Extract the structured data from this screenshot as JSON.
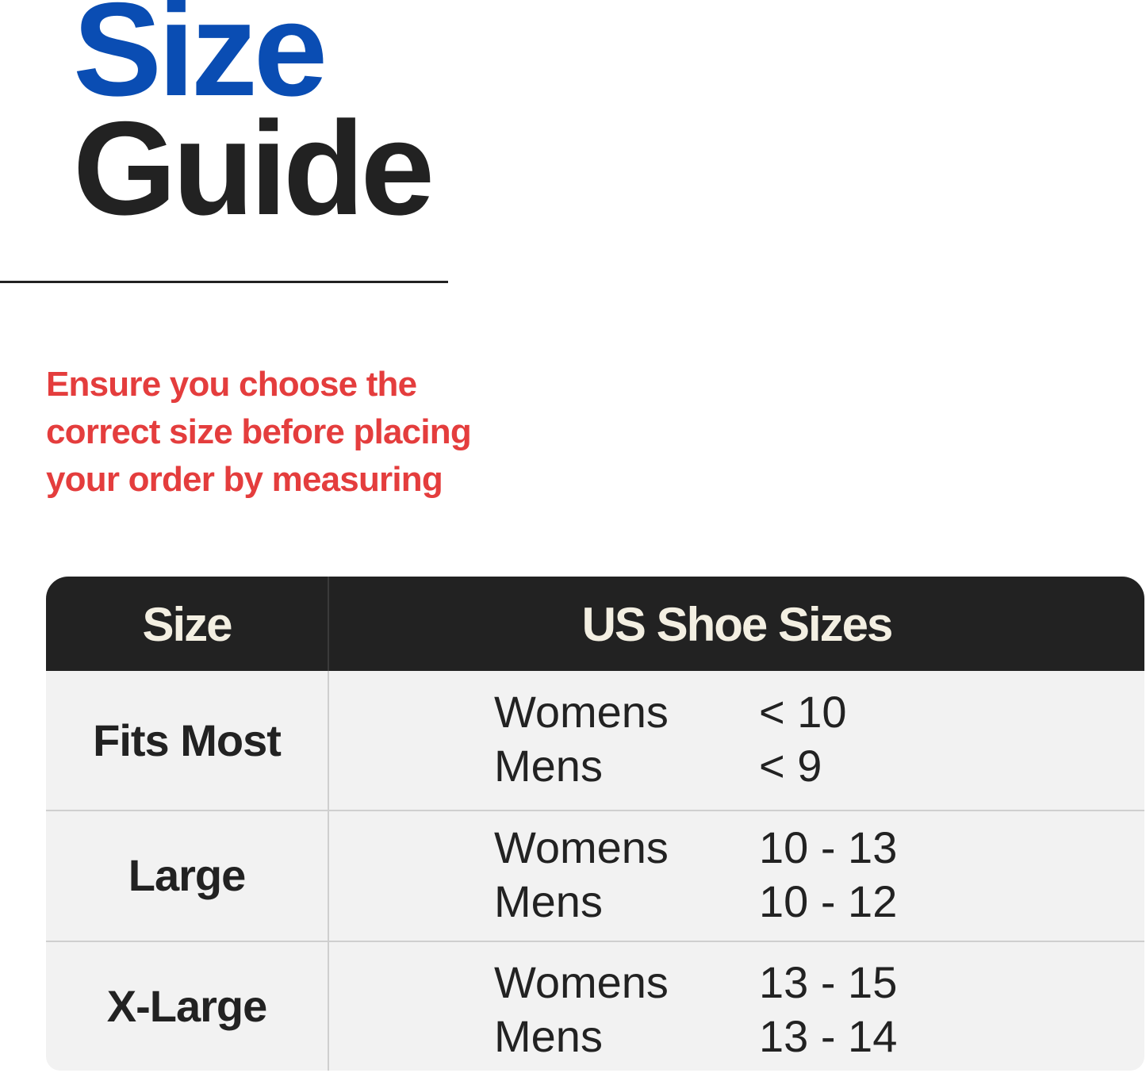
{
  "title": {
    "line1": "Size",
    "line2": "Guide",
    "line1_color": "#0a4db3",
    "line2_color": "#222222"
  },
  "note": {
    "lines": [
      "Ensure you choose the",
      "correct size before placing",
      "your order by measuring"
    ],
    "color": "#e43d3d"
  },
  "table": {
    "headers": [
      "Size",
      "US Shoe Sizes"
    ],
    "rows": [
      {
        "size": "Fits Most",
        "entries": [
          {
            "group": "Womens",
            "value": "< 10"
          },
          {
            "group": "Mens",
            "value": "< 9"
          }
        ]
      },
      {
        "size": "Large",
        "entries": [
          {
            "group": "Womens",
            "value": "10 - 13"
          },
          {
            "group": "Mens",
            "value": "10 - 12"
          }
        ]
      },
      {
        "size": "X-Large",
        "entries": [
          {
            "group": "Womens",
            "value": "13 - 15"
          },
          {
            "group": "Mens",
            "value": "13 - 14"
          }
        ]
      }
    ]
  }
}
